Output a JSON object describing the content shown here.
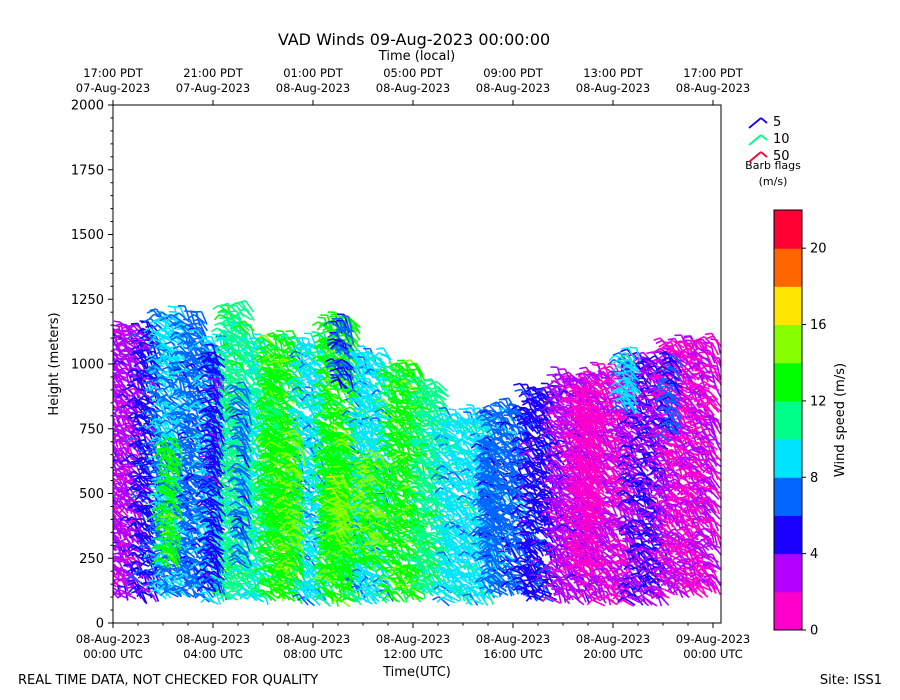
{
  "page": {
    "footer_left": "REAL TIME DATA, NOT CHECKED FOR QUALITY",
    "footer_right": "Site: ISS1"
  },
  "chart_data": {
    "type": "scatter",
    "title": "VAD Winds 09-Aug-2023 00:00:00",
    "xlabel": "Time(UTC)",
    "x2label": "Time (local)",
    "ylabel": "Height (meters)",
    "ylim": [
      0,
      2000
    ],
    "xlim_hours": [
      0,
      24.3
    ],
    "yticks": [
      0,
      250,
      500,
      750,
      1000,
      1250,
      1500,
      1750,
      2000
    ],
    "bottom_ticks": [
      {
        "hour": 0,
        "line1": "08-Aug-2023",
        "line2": "00:00 UTC"
      },
      {
        "hour": 4,
        "line1": "08-Aug-2023",
        "line2": "04:00 UTC"
      },
      {
        "hour": 8,
        "line1": "08-Aug-2023",
        "line2": "08:00 UTC"
      },
      {
        "hour": 12,
        "line1": "08-Aug-2023",
        "line2": "12:00 UTC"
      },
      {
        "hour": 16,
        "line1": "08-Aug-2023",
        "line2": "16:00 UTC"
      },
      {
        "hour": 20,
        "line1": "08-Aug-2023",
        "line2": "20:00 UTC"
      },
      {
        "hour": 24,
        "line1": "09-Aug-2023",
        "line2": "00:00 UTC"
      }
    ],
    "top_ticks": [
      {
        "hour": 0,
        "line1": "17:00 PDT",
        "line2": "07-Aug-2023"
      },
      {
        "hour": 4,
        "line1": "21:00 PDT",
        "line2": "07-Aug-2023"
      },
      {
        "hour": 8,
        "line1": "01:00 PDT",
        "line2": "08-Aug-2023"
      },
      {
        "hour": 12,
        "line1": "05:00 PDT",
        "line2": "08-Aug-2023"
      },
      {
        "hour": 16,
        "line1": "09:00 PDT",
        "line2": "08-Aug-2023"
      },
      {
        "hour": 20,
        "line1": "13:00 PDT",
        "line2": "08-Aug-2023"
      },
      {
        "hour": 24,
        "line1": "17:00 PDT",
        "line2": "08-Aug-2023"
      }
    ],
    "colorbar": {
      "label": "Wind speed (m/s)",
      "min": 0,
      "max": 22,
      "ticks": [
        0,
        4,
        8,
        12,
        16,
        20
      ],
      "colors": [
        "#ff00cc",
        "#b300ff",
        "#1a00ff",
        "#0066ff",
        "#00e5ff",
        "#00ff88",
        "#00ff00",
        "#88ff00",
        "#ffe600",
        "#ff6600",
        "#ff0033"
      ]
    },
    "barb_legend": {
      "title_line1": "Barb flags",
      "title_line2": "(m/s)",
      "entries": [
        {
          "label": "5",
          "color": "#1a00ff"
        },
        {
          "label": "10",
          "color": "#00ff88"
        },
        {
          "label": "50",
          "color": "#ff0033"
        }
      ]
    },
    "time_bins": [
      {
        "t0": 0.0,
        "t1": 1.2,
        "top": 1100,
        "speed": 3
      },
      {
        "t0": 1.2,
        "t1": 1.9,
        "top": 1120,
        "speed": 5
      },
      {
        "t0": 1.9,
        "t1": 3.0,
        "top": 1150,
        "speed": 8
      },
      {
        "t0": 3.0,
        "t1": 3.8,
        "top": 1140,
        "speed": 7
      },
      {
        "t0": 3.8,
        "t1": 4.6,
        "top": 1070,
        "speed": 8
      },
      {
        "t0": 4.6,
        "t1": 5.6,
        "top": 1180,
        "speed": 11
      },
      {
        "t0": 5.6,
        "t1": 6.3,
        "top": 1060,
        "speed": 10
      },
      {
        "t0": 6.3,
        "t1": 7.6,
        "top": 1060,
        "speed": 13
      },
      {
        "t0": 7.6,
        "t1": 8.6,
        "top": 1050,
        "speed": 9
      },
      {
        "t0": 8.6,
        "t1": 9.8,
        "top": 1150,
        "speed": 13
      },
      {
        "t0": 9.8,
        "t1": 11.2,
        "top": 1000,
        "speed": 9
      },
      {
        "t0": 11.2,
        "t1": 12.4,
        "top": 950,
        "speed": 13
      },
      {
        "t0": 12.4,
        "t1": 13.4,
        "top": 900,
        "speed": 11
      },
      {
        "t0": 13.4,
        "t1": 15.2,
        "top": 780,
        "speed": 9
      },
      {
        "t0": 15.2,
        "t1": 16.6,
        "top": 800,
        "speed": 7
      },
      {
        "t0": 16.6,
        "t1": 17.8,
        "top": 880,
        "speed": 5
      },
      {
        "t0": 17.8,
        "t1": 19.2,
        "top": 910,
        "speed": 3
      },
      {
        "t0": 19.2,
        "t1": 20.8,
        "top": 950,
        "speed": 2
      },
      {
        "t0": 20.8,
        "t1": 22.2,
        "top": 1000,
        "speed": 4
      },
      {
        "t0": 22.2,
        "t1": 24.3,
        "top": 1060,
        "speed": 2
      }
    ],
    "overlay_patches": [
      {
        "t0": 2.2,
        "t1": 2.7,
        "h0": 200,
        "h1": 650,
        "speed": 13
      },
      {
        "t0": 6.3,
        "t1": 6.9,
        "h0": 300,
        "h1": 950,
        "speed": 13
      },
      {
        "t0": 7.0,
        "t1": 7.7,
        "h0": 150,
        "h1": 700,
        "speed": 14
      },
      {
        "t0": 8.7,
        "t1": 9.7,
        "h0": 150,
        "h1": 700,
        "speed": 13
      },
      {
        "t0": 9.0,
        "t1": 9.5,
        "h0": 300,
        "h1": 500,
        "speed": 15
      },
      {
        "t0": 10.0,
        "t1": 11.0,
        "h0": 200,
        "h1": 600,
        "speed": 14
      },
      {
        "t0": 5.2,
        "t1": 5.5,
        "h0": 200,
        "h1": 900,
        "speed": 7
      },
      {
        "t0": 4.0,
        "t1": 4.4,
        "h0": 100,
        "h1": 1000,
        "speed": 5
      },
      {
        "t0": 9.1,
        "t1": 9.6,
        "h0": 900,
        "h1": 1150,
        "speed": 6
      },
      {
        "t0": 15.0,
        "t1": 15.5,
        "h0": 200,
        "h1": 650,
        "speed": 7
      },
      {
        "t0": 20.5,
        "t1": 21.0,
        "h0": 800,
        "h1": 1000,
        "speed": 9
      },
      {
        "t0": 22.3,
        "t1": 22.7,
        "h0": 700,
        "h1": 1000,
        "speed": 6
      },
      {
        "t0": 18.6,
        "t1": 19.6,
        "h0": 200,
        "h1": 900,
        "speed": 1
      }
    ]
  }
}
